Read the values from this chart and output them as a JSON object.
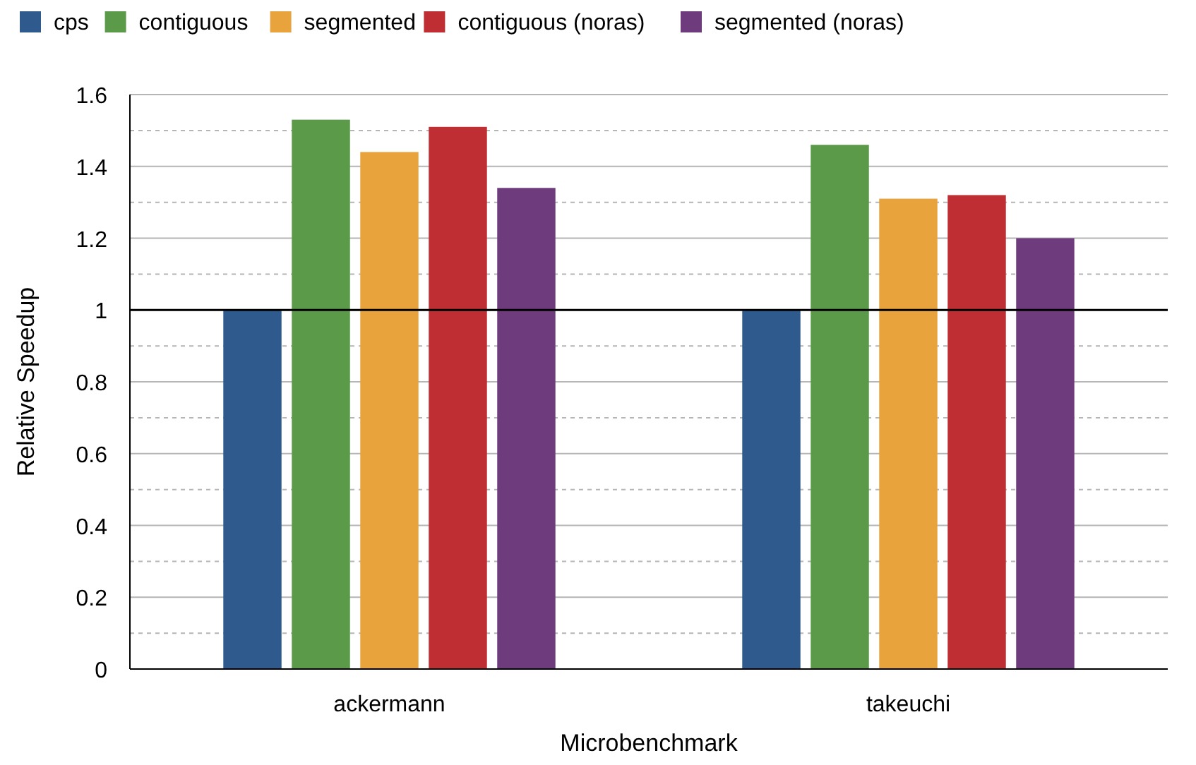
{
  "chart_data": {
    "type": "bar",
    "xlabel": "Microbenchmark",
    "ylabel": "Relative Speedup",
    "categories": [
      "ackermann",
      "takeuchi"
    ],
    "series": [
      {
        "name": "cps",
        "color": "#2e5a8e",
        "values": [
          1,
          1
        ]
      },
      {
        "name": "contiguous",
        "color": "#5b9a48",
        "values": [
          1.53,
          1.46
        ]
      },
      {
        "name": "segmented",
        "color": "#e8a33d",
        "values": [
          1.44,
          1.31
        ]
      },
      {
        "name": "contiguous (noras)",
        "color": "#bf2e32",
        "values": [
          1.51,
          1.32
        ]
      },
      {
        "name": "segmented (noras)",
        "color": "#6e3b7c",
        "values": [
          1.34,
          1.2
        ]
      }
    ],
    "ylim": [
      0,
      1.6
    ],
    "yticks": [
      0,
      {
        "value": 0.1,
        "label": null
      },
      0.2,
      {
        "value": 0.3,
        "label": null
      },
      0.4,
      {
        "value": 0.5,
        "label": null
      },
      0.6,
      {
        "value": 0.7,
        "label": null
      },
      0.8,
      {
        "value": 0.9,
        "label": null
      },
      1,
      {
        "value": 1.1,
        "label": null
      },
      1.2,
      {
        "value": 1.3,
        "label": null
      },
      1.4,
      {
        "value": 1.5,
        "label": null
      },
      1.6
    ],
    "grid": "y",
    "legend": "top",
    "ref_lines": [
      {
        "axis": "y",
        "value": 1,
        "color": "#000000"
      }
    ]
  }
}
